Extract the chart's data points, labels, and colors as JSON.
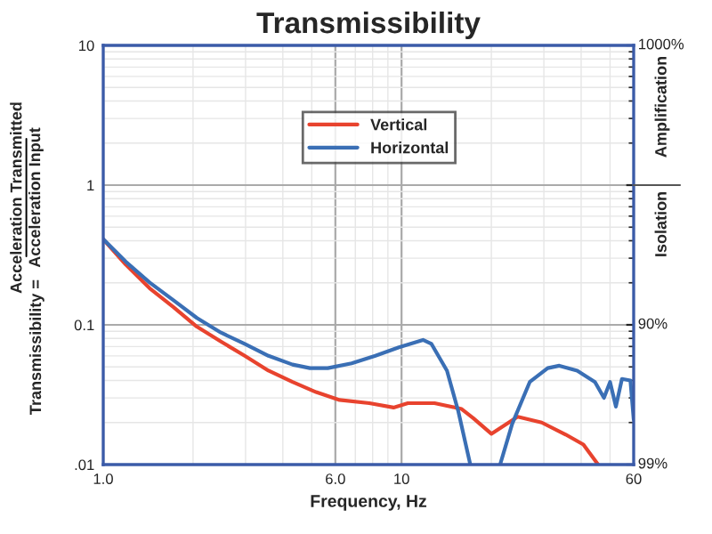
{
  "chart_data": {
    "type": "line",
    "title": "Transmissibility",
    "xlabel": "Frequency, Hz",
    "ylabel": "Transmissibility =",
    "annotations": [
      "Acceleration Transmitted",
      "Acceleration Input",
      "Amplification",
      "Isolation",
      "1000%",
      "90%",
      "99%"
    ],
    "log": "xy",
    "xlim": [
      1,
      60
    ],
    "ylim": [
      0.01,
      10
    ],
    "xticks": [
      {
        "value": 1,
        "label": "1.0"
      },
      {
        "value": 6,
        "label": "6.0"
      },
      10,
      60
    ],
    "yticks": [
      {
        "value": 0.01,
        "label": ".01"
      },
      0.1,
      1,
      10
    ],
    "grid": true,
    "legend": "top",
    "line_style": "solid",
    "marker": "none",
    "series": [
      {
        "name": "Vertical",
        "color": "#e8432e",
        "x": [
          1,
          1.19,
          1.43,
          1.72,
          2.06,
          2.48,
          2.98,
          3.58,
          4.31,
          5.17,
          6.2,
          7.8,
          9.4,
          10.5,
          12.9,
          15.9,
          17.4,
          20.0,
          24.5,
          29.5,
          35.5,
          40.7,
          45.6
        ],
        "values": [
          0.41,
          0.27,
          0.183,
          0.134,
          0.097,
          0.076,
          0.06,
          0.047,
          0.039,
          0.033,
          0.029,
          0.0275,
          0.0256,
          0.0275,
          0.0275,
          0.025,
          0.0215,
          0.0166,
          0.022,
          0.02,
          0.0164,
          0.0139,
          0.01
        ]
      },
      {
        "name": "Horizontal",
        "color": "#3a6fb5",
        "x": [
          1,
          1.19,
          1.43,
          1.72,
          2.06,
          2.48,
          2.98,
          3.58,
          4.31,
          4.93,
          5.66,
          6.8,
          8.17,
          9.8,
          11.8,
          12.6,
          14.2,
          15.5,
          17.0,
          19,
          21.4,
          23.5,
          26.9,
          30.9,
          33.8,
          38.8,
          44.5,
          47.7,
          50.0,
          52.3,
          54.8,
          58.5,
          60
        ],
        "values": [
          0.41,
          0.283,
          0.201,
          0.15,
          0.112,
          0.088,
          0.073,
          0.06,
          0.052,
          0.049,
          0.049,
          0.053,
          0.06,
          0.069,
          0.078,
          0.073,
          0.047,
          0.024,
          0.01,
          null,
          0.01,
          0.0196,
          0.039,
          0.049,
          0.051,
          0.047,
          0.039,
          0.03,
          0.039,
          0.026,
          0.041,
          0.04,
          0.021
        ]
      }
    ]
  }
}
